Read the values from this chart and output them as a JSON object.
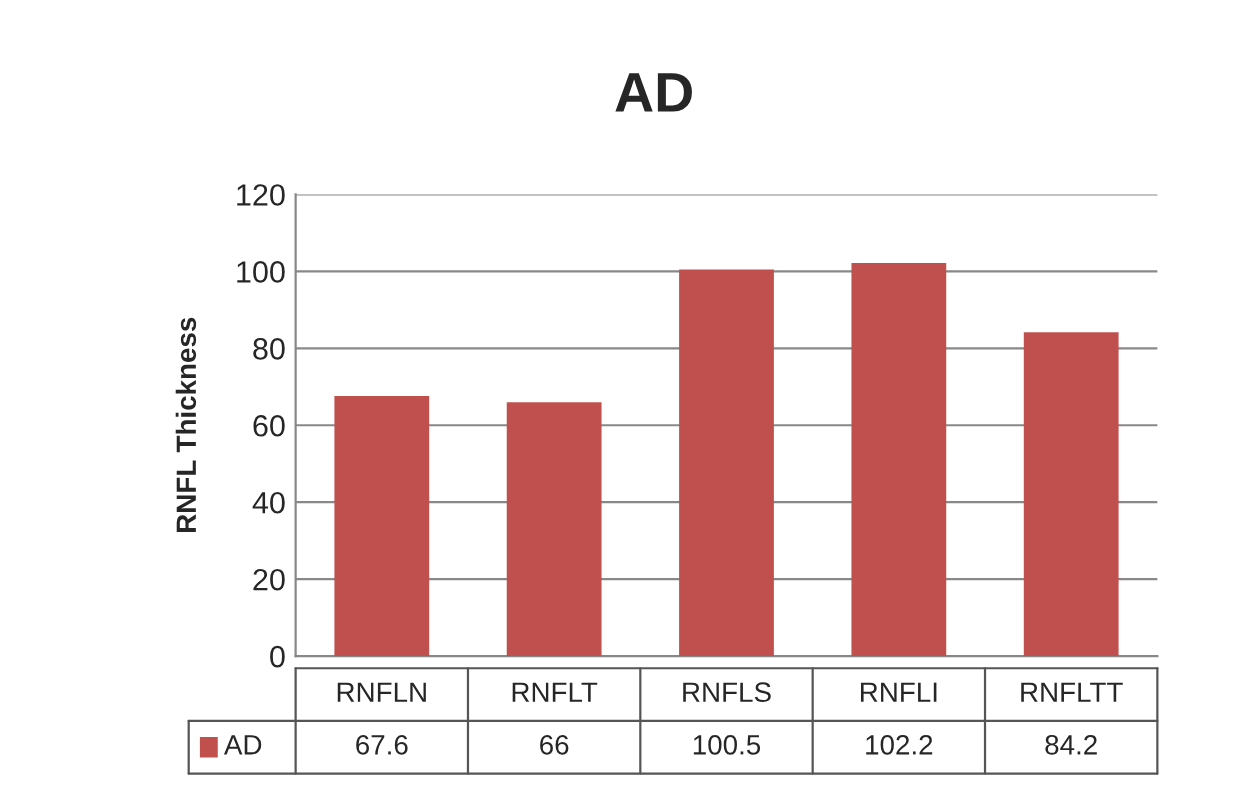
{
  "chart_data": {
    "type": "bar",
    "title": "AD",
    "ylabel": "RNFL Thickness",
    "categories": [
      "RNFLN",
      "RNFLT",
      "RNFLS",
      "RNFLI",
      "RNFLTT"
    ],
    "series": [
      {
        "name": "AD",
        "color": "#c0504d",
        "values": [
          67.6,
          66,
          100.5,
          102.2,
          84.2
        ]
      }
    ],
    "ylim": [
      0,
      120
    ],
    "yticks": [
      0,
      20,
      40,
      60,
      80,
      100,
      120
    ],
    "grid": "y",
    "data_labels": true,
    "legend": "bottom"
  }
}
